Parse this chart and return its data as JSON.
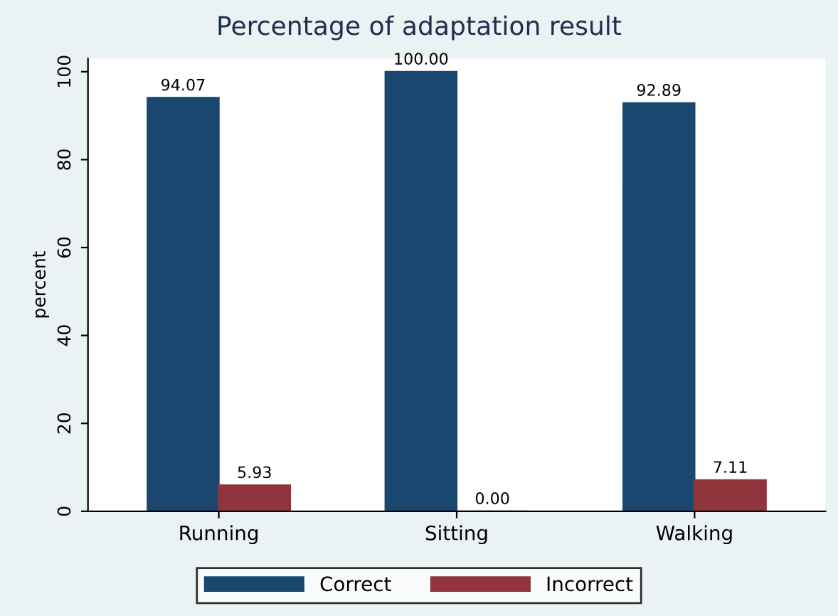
{
  "chart_data": {
    "type": "bar",
    "title": "Percentage of adaptation result",
    "ylabel": "percent",
    "categories": [
      "Running",
      "Sitting",
      "Walking"
    ],
    "series": [
      {
        "name": "Correct",
        "color": "#1a476f",
        "values": [
          94.07,
          100.0,
          92.89
        ],
        "value_labels": [
          "94.07",
          "100.00",
          "92.89"
        ]
      },
      {
        "name": "Incorrect",
        "color": "#90353b",
        "values": [
          5.93,
          0.0,
          7.11
        ],
        "value_labels": [
          "5.93",
          "0.00",
          "7.11"
        ]
      }
    ],
    "ylim": [
      0,
      103
    ],
    "yticks": [
      0,
      20,
      40,
      60,
      80,
      100
    ],
    "grid": false,
    "legend": "bottom"
  }
}
